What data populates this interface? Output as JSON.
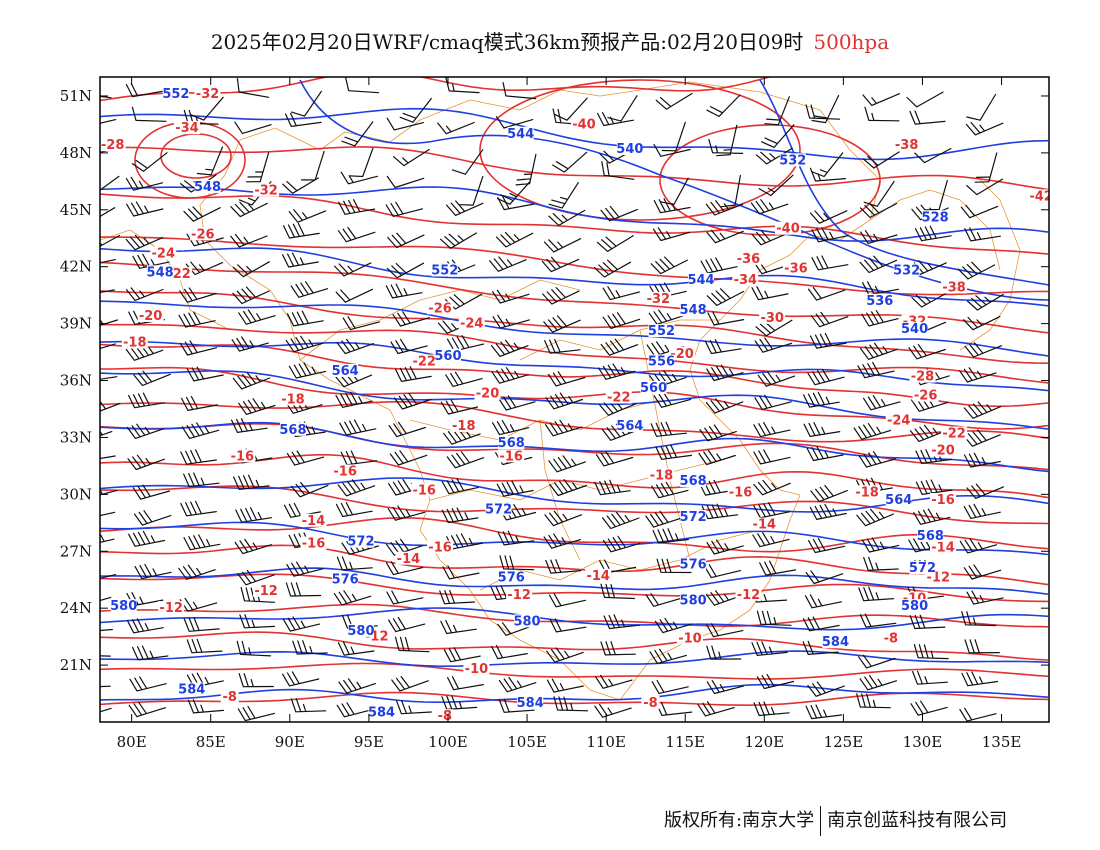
{
  "title": {
    "main": "2025年02月20日WRF/cmaq模式36km预报产品:02月20日09时",
    "level": "500hpa"
  },
  "footer": {
    "copyright": "版权所有:南京大学",
    "company": "南京创蓝科技有限公司"
  },
  "colors": {
    "temperature": "#e23232",
    "geopotential": "#1f3fe0",
    "wind": "#111111",
    "border": "#e8973a",
    "level": "#e23232"
  },
  "map": {
    "lon_range": [
      78,
      138
    ],
    "lat_range": [
      18,
      52
    ],
    "lon_ticks": [
      80,
      85,
      90,
      95,
      100,
      105,
      110,
      115,
      120,
      125,
      130,
      135
    ],
    "lon_labels": [
      "80E",
      "85E",
      "90E",
      "95E",
      "100E",
      "105E",
      "110E",
      "115E",
      "120E",
      "125E",
      "130E",
      "135E"
    ],
    "lat_ticks": [
      21,
      24,
      27,
      30,
      33,
      36,
      39,
      42,
      45,
      48,
      51
    ],
    "lat_labels": [
      "21N",
      "24N",
      "27N",
      "30N",
      "33N",
      "36N",
      "39N",
      "42N",
      "45N",
      "48N",
      "51N"
    ]
  },
  "chart_data": {
    "type": "map",
    "temperature_labels": [
      {
        "text": "-32",
        "lon": 84.8,
        "lat": 51.0
      },
      {
        "text": "-34",
        "lon": 83.5,
        "lat": 49.2
      },
      {
        "text": "-28",
        "lon": 78.8,
        "lat": 48.3
      },
      {
        "text": "-32",
        "lon": 88.5,
        "lat": 45.9
      },
      {
        "text": "-26",
        "lon": 84.5,
        "lat": 43.6
      },
      {
        "text": "-24",
        "lon": 82.0,
        "lat": 42.6
      },
      {
        "text": "-22",
        "lon": 83.0,
        "lat": 41.5
      },
      {
        "text": "-20",
        "lon": 81.2,
        "lat": 39.3
      },
      {
        "text": "-18",
        "lon": 80.2,
        "lat": 37.9
      },
      {
        "text": "-40",
        "lon": 108.6,
        "lat": 49.4
      },
      {
        "text": "-38",
        "lon": 129.0,
        "lat": 48.3
      },
      {
        "text": "-40",
        "lon": 121.5,
        "lat": 43.9
      },
      {
        "text": "-42",
        "lon": 137.5,
        "lat": 45.6
      },
      {
        "text": "-36",
        "lon": 119.0,
        "lat": 42.3
      },
      {
        "text": "-36",
        "lon": 122.0,
        "lat": 41.8
      },
      {
        "text": "-34",
        "lon": 118.8,
        "lat": 41.2
      },
      {
        "text": "-38",
        "lon": 132.0,
        "lat": 40.8
      },
      {
        "text": "-32",
        "lon": 113.3,
        "lat": 40.2
      },
      {
        "text": "-30",
        "lon": 120.5,
        "lat": 39.2
      },
      {
        "text": "-32",
        "lon": 129.5,
        "lat": 39.0
      },
      {
        "text": "-26",
        "lon": 99.5,
        "lat": 39.7
      },
      {
        "text": "-24",
        "lon": 101.5,
        "lat": 38.9
      },
      {
        "text": "-22",
        "lon": 98.5,
        "lat": 36.9
      },
      {
        "text": "-20",
        "lon": 114.8,
        "lat": 37.3
      },
      {
        "text": "-28",
        "lon": 130.0,
        "lat": 36.1
      },
      {
        "text": "-26",
        "lon": 130.2,
        "lat": 35.1
      },
      {
        "text": "-24",
        "lon": 128.5,
        "lat": 33.8
      },
      {
        "text": "-22",
        "lon": 132.0,
        "lat": 33.1
      },
      {
        "text": "-20",
        "lon": 131.3,
        "lat": 32.2
      },
      {
        "text": "-18",
        "lon": 90.2,
        "lat": 34.9
      },
      {
        "text": "-20",
        "lon": 102.5,
        "lat": 35.2
      },
      {
        "text": "-22",
        "lon": 110.8,
        "lat": 35.0
      },
      {
        "text": "-18",
        "lon": 101.0,
        "lat": 33.5
      },
      {
        "text": "-16",
        "lon": 104.0,
        "lat": 31.9
      },
      {
        "text": "-16",
        "lon": 87.0,
        "lat": 31.9
      },
      {
        "text": "-16",
        "lon": 93.5,
        "lat": 31.1
      },
      {
        "text": "-16",
        "lon": 98.5,
        "lat": 30.1
      },
      {
        "text": "-18",
        "lon": 113.5,
        "lat": 30.9
      },
      {
        "text": "-16",
        "lon": 118.5,
        "lat": 30.0
      },
      {
        "text": "-18",
        "lon": 126.5,
        "lat": 30.0
      },
      {
        "text": "-16",
        "lon": 131.3,
        "lat": 29.6
      },
      {
        "text": "-14",
        "lon": 91.5,
        "lat": 28.5
      },
      {
        "text": "-16",
        "lon": 91.5,
        "lat": 27.3
      },
      {
        "text": "-16",
        "lon": 99.5,
        "lat": 27.1
      },
      {
        "text": "-14",
        "lon": 97.5,
        "lat": 26.5
      },
      {
        "text": "-14",
        "lon": 120.0,
        "lat": 28.3
      },
      {
        "text": "-14",
        "lon": 131.3,
        "lat": 27.1
      },
      {
        "text": "-14",
        "lon": 109.5,
        "lat": 25.6
      },
      {
        "text": "-12",
        "lon": 131.0,
        "lat": 25.5
      },
      {
        "text": "-12",
        "lon": 88.5,
        "lat": 24.8
      },
      {
        "text": "-12",
        "lon": 82.5,
        "lat": 23.9
      },
      {
        "text": "-12",
        "lon": 104.5,
        "lat": 24.6
      },
      {
        "text": "-12",
        "lon": 119.0,
        "lat": 24.6
      },
      {
        "text": "-10",
        "lon": 129.5,
        "lat": 24.4
      },
      {
        "text": "-12",
        "lon": 95.5,
        "lat": 22.4
      },
      {
        "text": "-10",
        "lon": 115.3,
        "lat": 22.3
      },
      {
        "text": "-8",
        "lon": 128.0,
        "lat": 22.3
      },
      {
        "text": "-10",
        "lon": 101.8,
        "lat": 20.7
      },
      {
        "text": "-8",
        "lon": 86.2,
        "lat": 19.2
      },
      {
        "text": "-8",
        "lon": 112.8,
        "lat": 18.9
      },
      {
        "text": "-8",
        "lon": 99.8,
        "lat": 18.2
      }
    ],
    "geopotential_labels": [
      {
        "text": "552",
        "lon": 82.8,
        "lat": 51.0
      },
      {
        "text": "544",
        "lon": 104.6,
        "lat": 48.9
      },
      {
        "text": "540",
        "lon": 111.5,
        "lat": 48.1
      },
      {
        "text": "532",
        "lon": 121.8,
        "lat": 47.5
      },
      {
        "text": "548",
        "lon": 84.8,
        "lat": 46.1
      },
      {
        "text": "528",
        "lon": 130.8,
        "lat": 44.5
      },
      {
        "text": "552",
        "lon": 99.8,
        "lat": 41.7
      },
      {
        "text": "548",
        "lon": 81.8,
        "lat": 41.6
      },
      {
        "text": "544",
        "lon": 116.0,
        "lat": 41.2
      },
      {
        "text": "532",
        "lon": 129.0,
        "lat": 41.7
      },
      {
        "text": "536",
        "lon": 127.3,
        "lat": 40.1
      },
      {
        "text": "548",
        "lon": 115.5,
        "lat": 39.6
      },
      {
        "text": "552",
        "lon": 113.5,
        "lat": 38.5
      },
      {
        "text": "540",
        "lon": 129.5,
        "lat": 38.6
      },
      {
        "text": "560",
        "lon": 100.0,
        "lat": 37.2
      },
      {
        "text": "556",
        "lon": 113.5,
        "lat": 36.9
      },
      {
        "text": "564",
        "lon": 93.5,
        "lat": 36.4
      },
      {
        "text": "560",
        "lon": 113.0,
        "lat": 35.5
      },
      {
        "text": "564",
        "lon": 111.5,
        "lat": 33.5
      },
      {
        "text": "568",
        "lon": 90.2,
        "lat": 33.3
      },
      {
        "text": "568",
        "lon": 104.0,
        "lat": 32.6
      },
      {
        "text": "568",
        "lon": 115.5,
        "lat": 30.6
      },
      {
        "text": "564",
        "lon": 128.5,
        "lat": 29.6
      },
      {
        "text": "572",
        "lon": 103.2,
        "lat": 29.1
      },
      {
        "text": "572",
        "lon": 115.5,
        "lat": 28.7
      },
      {
        "text": "572",
        "lon": 94.5,
        "lat": 27.4
      },
      {
        "text": "568",
        "lon": 130.5,
        "lat": 27.7
      },
      {
        "text": "576",
        "lon": 115.5,
        "lat": 26.2
      },
      {
        "text": "576",
        "lon": 93.5,
        "lat": 25.4
      },
      {
        "text": "576",
        "lon": 104.0,
        "lat": 25.5
      },
      {
        "text": "572",
        "lon": 130.0,
        "lat": 26.0
      },
      {
        "text": "580",
        "lon": 79.5,
        "lat": 24.0
      },
      {
        "text": "580",
        "lon": 115.5,
        "lat": 24.3
      },
      {
        "text": "580",
        "lon": 129.5,
        "lat": 24.0
      },
      {
        "text": "580",
        "lon": 94.5,
        "lat": 22.7
      },
      {
        "text": "580",
        "lon": 105.0,
        "lat": 23.2
      },
      {
        "text": "584",
        "lon": 124.5,
        "lat": 22.1
      },
      {
        "text": "584",
        "lon": 83.8,
        "lat": 19.6
      },
      {
        "text": "584",
        "lon": 105.2,
        "lat": 18.9
      },
      {
        "text": "584",
        "lon": 95.8,
        "lat": 18.4
      }
    ]
  }
}
